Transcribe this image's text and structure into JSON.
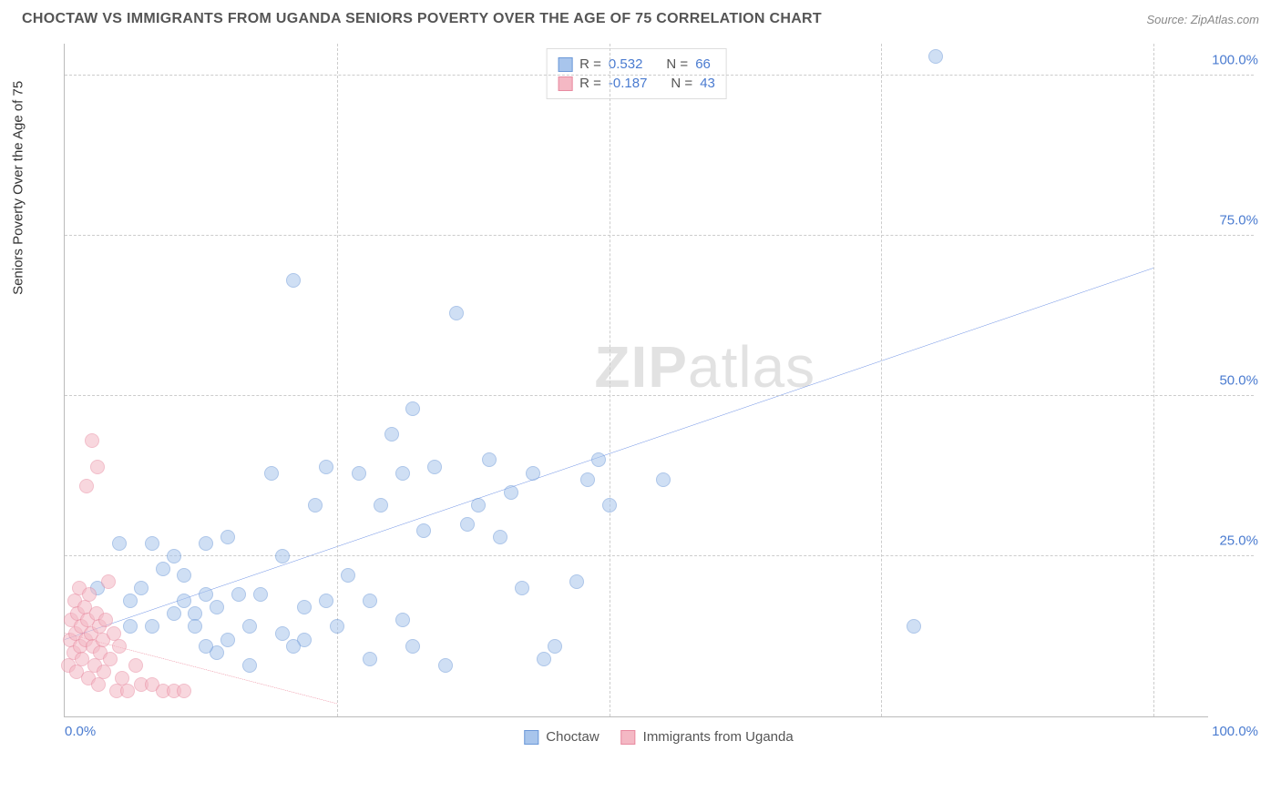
{
  "header": {
    "title": "CHOCTAW VS IMMIGRANTS FROM UGANDA SENIORS POVERTY OVER THE AGE OF 75 CORRELATION CHART",
    "source": "Source: ZipAtlas.com"
  },
  "watermark": {
    "bold": "ZIP",
    "light": "atlas"
  },
  "chart": {
    "type": "scatter",
    "y_axis_label": "Seniors Poverty Over the Age of 75",
    "xlim": [
      0,
      105
    ],
    "ylim": [
      0,
      105
    ],
    "y_ticks": [
      25,
      50,
      75,
      100
    ],
    "y_tick_labels": [
      "25.0%",
      "50.0%",
      "75.0%",
      "100.0%"
    ],
    "x_ticks": [
      0,
      25,
      50,
      75,
      100
    ],
    "x_tick_labels_shown": {
      "0": "0.0%",
      "100": "100.0%"
    },
    "v_gridlines": [
      25,
      50,
      75,
      100
    ],
    "grid_color": "#cccccc",
    "background_color": "#ffffff",
    "marker_radius": 8,
    "marker_opacity": 0.55,
    "series": [
      {
        "name": "Choctaw",
        "color_fill": "#a8c5ec",
        "color_stroke": "#6b98d8",
        "R": "0.532",
        "N": "66",
        "trend": {
          "x1": 0,
          "y1": 12,
          "x2": 100,
          "y2": 70,
          "stroke": "#2e62d9",
          "width": 2,
          "dash": "none"
        },
        "points": [
          [
            3,
            20
          ],
          [
            5,
            27
          ],
          [
            6,
            18
          ],
          [
            6,
            14
          ],
          [
            7,
            20
          ],
          [
            8,
            27
          ],
          [
            8,
            14
          ],
          [
            9,
            23
          ],
          [
            10,
            16
          ],
          [
            10,
            25
          ],
          [
            11,
            18
          ],
          [
            11,
            22
          ],
          [
            12,
            16
          ],
          [
            12,
            14
          ],
          [
            13,
            27
          ],
          [
            13,
            19
          ],
          [
            14,
            17
          ],
          [
            14,
            10
          ],
          [
            15,
            12
          ],
          [
            15,
            28
          ],
          [
            16,
            19
          ],
          [
            17,
            8
          ],
          [
            17,
            14
          ],
          [
            18,
            19
          ],
          [
            19,
            38
          ],
          [
            20,
            13
          ],
          [
            20,
            25
          ],
          [
            21,
            68
          ],
          [
            22,
            17
          ],
          [
            22,
            12
          ],
          [
            23,
            33
          ],
          [
            24,
            39
          ],
          [
            24,
            18
          ],
          [
            25,
            14
          ],
          [
            26,
            22
          ],
          [
            27,
            38
          ],
          [
            28,
            9
          ],
          [
            28,
            18
          ],
          [
            29,
            33
          ],
          [
            30,
            44
          ],
          [
            31,
            38
          ],
          [
            31,
            15
          ],
          [
            32,
            48
          ],
          [
            33,
            29
          ],
          [
            34,
            39
          ],
          [
            35,
            8
          ],
          [
            36,
            63
          ],
          [
            37,
            30
          ],
          [
            38,
            33
          ],
          [
            39,
            40
          ],
          [
            40,
            28
          ],
          [
            41,
            35
          ],
          [
            42,
            20
          ],
          [
            43,
            38
          ],
          [
            47,
            21
          ],
          [
            48,
            37
          ],
          [
            49,
            40
          ],
          [
            50,
            33
          ],
          [
            55,
            37
          ],
          [
            78,
            14
          ],
          [
            80,
            103
          ],
          [
            44,
            9
          ],
          [
            45,
            11
          ],
          [
            32,
            11
          ],
          [
            21,
            11
          ],
          [
            13,
            11
          ]
        ]
      },
      {
        "name": "Immigrants from Uganda",
        "color_fill": "#f4b8c4",
        "color_stroke": "#e88aa0",
        "R": "-0.187",
        "N": "43",
        "trend": {
          "x1": 0,
          "y1": 13,
          "x2": 25,
          "y2": 2,
          "stroke": "#e03a5a",
          "width": 2,
          "dash": "6 5"
        },
        "points": [
          [
            0.3,
            8
          ],
          [
            0.5,
            12
          ],
          [
            0.6,
            15
          ],
          [
            0.8,
            10
          ],
          [
            0.9,
            18
          ],
          [
            1.0,
            13
          ],
          [
            1.1,
            7
          ],
          [
            1.2,
            16
          ],
          [
            1.3,
            20
          ],
          [
            1.4,
            11
          ],
          [
            1.5,
            14
          ],
          [
            1.6,
            9
          ],
          [
            1.8,
            17
          ],
          [
            1.9,
            12
          ],
          [
            2.0,
            36
          ],
          [
            2.1,
            15
          ],
          [
            2.2,
            6
          ],
          [
            2.3,
            19
          ],
          [
            2.4,
            13
          ],
          [
            2.5,
            43
          ],
          [
            2.6,
            11
          ],
          [
            2.8,
            8
          ],
          [
            2.9,
            16
          ],
          [
            3.0,
            39
          ],
          [
            3.1,
            5
          ],
          [
            3.2,
            14
          ],
          [
            3.3,
            10
          ],
          [
            3.5,
            12
          ],
          [
            3.6,
            7
          ],
          [
            3.8,
            15
          ],
          [
            4.0,
            21
          ],
          [
            4.2,
            9
          ],
          [
            4.5,
            13
          ],
          [
            4.8,
            4
          ],
          [
            5.0,
            11
          ],
          [
            5.3,
            6
          ],
          [
            5.8,
            4
          ],
          [
            6.5,
            8
          ],
          [
            7.0,
            5
          ],
          [
            8.0,
            5
          ],
          [
            9.0,
            4
          ],
          [
            10.0,
            4
          ],
          [
            11.0,
            4
          ]
        ]
      }
    ],
    "legend_bottom": [
      {
        "label": "Choctaw",
        "fill": "#a8c5ec",
        "stroke": "#6b98d8"
      },
      {
        "label": "Immigrants from Uganda",
        "fill": "#f4b8c4",
        "stroke": "#e88aa0"
      }
    ]
  }
}
